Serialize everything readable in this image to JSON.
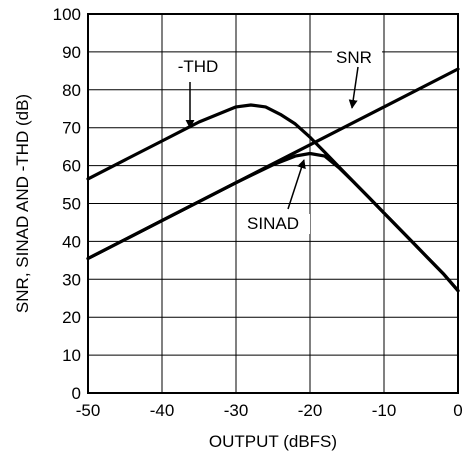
{
  "chart_data": {
    "type": "line",
    "title": "",
    "xlabel": "OUTPUT (dBFS)",
    "ylabel": "SNR, SINAD AND -THD (dB)",
    "xlim": [
      -50,
      0
    ],
    "ylim": [
      0,
      100
    ],
    "xticks": [
      -50,
      -40,
      -30,
      -20,
      -10,
      0
    ],
    "yticks": [
      0,
      10,
      20,
      30,
      40,
      50,
      60,
      70,
      80,
      90,
      100
    ],
    "grid": true,
    "legend": "none",
    "series": [
      {
        "name": "-THD",
        "x": [
          -50,
          -45,
          -40,
          -35,
          -30,
          -28,
          -26,
          -24,
          -22,
          -20,
          -18,
          -16,
          -14,
          -12,
          -10,
          -8,
          -6,
          -4,
          -2,
          0
        ],
        "y": [
          56.5,
          61.5,
          66.5,
          71.5,
          75.5,
          76,
          75.5,
          73.5,
          71,
          67.5,
          63.5,
          59.5,
          55.5,
          51.5,
          47.5,
          43.5,
          39.5,
          35.5,
          31.5,
          27
        ]
      },
      {
        "name": "SNR",
        "x": [
          -50,
          -40,
          -30,
          -20,
          -10,
          0
        ],
        "y": [
          35.5,
          45.5,
          55.5,
          65.5,
          75.5,
          85.5
        ]
      },
      {
        "name": "SINAD",
        "x": [
          -50,
          -40,
          -30,
          -25,
          -22,
          -20,
          -18,
          -16,
          -14,
          -12,
          -10,
          -8,
          -6,
          -4,
          -2,
          0
        ],
        "y": [
          35.5,
          45.5,
          55.5,
          60.2,
          62.5,
          63.2,
          62.5,
          59.3,
          55.5,
          51.5,
          47.5,
          43.5,
          39.5,
          35.5,
          31.5,
          27
        ]
      }
    ],
    "annotations": [
      {
        "series": "-THD",
        "label": "-THD"
      },
      {
        "series": "SNR",
        "label": "SNR"
      },
      {
        "series": "SINAD",
        "label": "SINAD"
      }
    ]
  }
}
